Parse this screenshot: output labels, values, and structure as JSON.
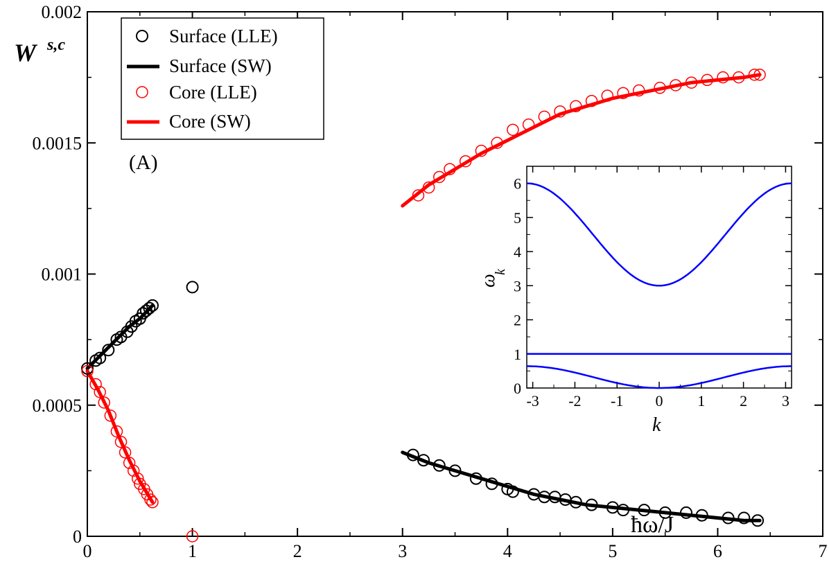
{
  "chart_data": [
    {
      "id": "main",
      "type": "scatter",
      "panel_label": "(A)",
      "ylabel": "W",
      "ylabel_superscript": "s,c",
      "xlabel": "ħω/J",
      "xlim": [
        0,
        7
      ],
      "ylim": [
        0,
        0.002
      ],
      "x_ticks": [
        "0",
        "1",
        "2",
        "3",
        "4",
        "5",
        "6",
        "7"
      ],
      "y_ticks": [
        "0",
        "0.0005",
        "0.001",
        "0.0015",
        "0.002"
      ],
      "legend_position": "top-left",
      "colors": {
        "surface": "#000000",
        "core": "#ff0000"
      },
      "legend": [
        {
          "label": "Surface (LLE)",
          "kind": "marker",
          "color": "#000000"
        },
        {
          "label": "Surface (SW)",
          "kind": "line",
          "color": "#000000"
        },
        {
          "label": "Core (LLE)",
          "kind": "marker",
          "color": "#ff0000"
        },
        {
          "label": "Core (SW)",
          "kind": "line",
          "color": "#ff0000"
        }
      ],
      "series": [
        {
          "name": "Surface (LLE)",
          "kind": "markers",
          "color": "#000000",
          "points": [
            [
              0.0,
              0.00064
            ],
            [
              0.08,
              0.00067
            ],
            [
              0.12,
              0.00068
            ],
            [
              0.2,
              0.00071
            ],
            [
              0.28,
              0.00075
            ],
            [
              0.32,
              0.00076
            ],
            [
              0.38,
              0.00078
            ],
            [
              0.42,
              0.0008
            ],
            [
              0.46,
              0.00082
            ],
            [
              0.5,
              0.00083
            ],
            [
              0.53,
              0.00085
            ],
            [
              0.56,
              0.00086
            ],
            [
              0.59,
              0.00087
            ],
            [
              0.62,
              0.00088
            ],
            [
              1.0,
              0.00095
            ],
            [
              3.1,
              0.00031
            ],
            [
              3.2,
              0.00029
            ],
            [
              3.35,
              0.00027
            ],
            [
              3.5,
              0.00025
            ],
            [
              3.7,
              0.00022
            ],
            [
              3.85,
              0.0002
            ],
            [
              4.0,
              0.00018
            ],
            [
              4.05,
              0.00017
            ],
            [
              4.25,
              0.00016
            ],
            [
              4.35,
              0.00015
            ],
            [
              4.45,
              0.00015
            ],
            [
              4.55,
              0.00014
            ],
            [
              4.65,
              0.00013
            ],
            [
              4.8,
              0.00012
            ],
            [
              5.0,
              0.00011
            ],
            [
              5.1,
              0.0001
            ],
            [
              5.3,
              0.0001
            ],
            [
              5.5,
              9e-05
            ],
            [
              5.7,
              9e-05
            ],
            [
              5.85,
              8e-05
            ],
            [
              6.1,
              7e-05
            ],
            [
              6.25,
              7e-05
            ],
            [
              6.38,
              6e-05
            ]
          ]
        },
        {
          "name": "Surface (SW)",
          "kind": "line",
          "color": "#000000",
          "x": [
            0.0,
            0.1,
            0.2,
            0.3,
            0.4,
            0.5,
            0.62
          ],
          "y": [
            0.00064,
            0.00068,
            0.00072,
            0.00076,
            0.0008,
            0.00083,
            0.00088
          ]
        },
        {
          "name": "Surface (SW) high band",
          "kind": "line",
          "color": "#000000",
          "x": [
            3.0,
            3.25,
            3.5,
            3.75,
            4.0,
            4.25,
            4.5,
            4.75,
            5.0,
            5.25,
            5.5,
            5.75,
            6.0,
            6.25,
            6.4
          ],
          "y": [
            0.00032,
            0.00028,
            0.00025,
            0.00022,
            0.00019,
            0.00016,
            0.00014,
            0.00012,
            0.00011,
            0.0001,
            9e-05,
            8e-05,
            7e-05,
            6e-05,
            6e-05
          ]
        },
        {
          "name": "Core (LLE)",
          "kind": "markers",
          "color": "#ff0000",
          "points": [
            [
              0.0,
              0.00063
            ],
            [
              0.08,
              0.00058
            ],
            [
              0.12,
              0.00055
            ],
            [
              0.16,
              0.00051
            ],
            [
              0.22,
              0.00046
            ],
            [
              0.28,
              0.0004
            ],
            [
              0.32,
              0.00036
            ],
            [
              0.36,
              0.00032
            ],
            [
              0.4,
              0.00028
            ],
            [
              0.44,
              0.00025
            ],
            [
              0.48,
              0.00022
            ],
            [
              0.5,
              0.0002
            ],
            [
              0.54,
              0.00018
            ],
            [
              0.57,
              0.00016
            ],
            [
              0.6,
              0.00014
            ],
            [
              0.62,
              0.00013
            ],
            [
              1.0,
              0.0
            ],
            [
              3.15,
              0.0013
            ],
            [
              3.25,
              0.00133
            ],
            [
              3.35,
              0.00137
            ],
            [
              3.45,
              0.0014
            ],
            [
              3.6,
              0.00143
            ],
            [
              3.75,
              0.00147
            ],
            [
              3.9,
              0.0015
            ],
            [
              4.05,
              0.00155
            ],
            [
              4.2,
              0.00157
            ],
            [
              4.35,
              0.0016
            ],
            [
              4.5,
              0.00162
            ],
            [
              4.65,
              0.00164
            ],
            [
              4.8,
              0.00166
            ],
            [
              4.95,
              0.00168
            ],
            [
              5.1,
              0.00169
            ],
            [
              5.25,
              0.0017
            ],
            [
              5.45,
              0.00171
            ],
            [
              5.6,
              0.00172
            ],
            [
              5.75,
              0.00173
            ],
            [
              5.9,
              0.00174
            ],
            [
              6.05,
              0.00175
            ],
            [
              6.2,
              0.00175
            ],
            [
              6.35,
              0.00176
            ],
            [
              6.4,
              0.00176
            ]
          ]
        },
        {
          "name": "Core (SW)",
          "kind": "line",
          "color": "#ff0000",
          "x": [
            0.0,
            0.1,
            0.2,
            0.3,
            0.4,
            0.5,
            0.62
          ],
          "y": [
            0.00063,
            0.00056,
            0.00048,
            0.00038,
            0.00029,
            0.00021,
            0.00013
          ]
        },
        {
          "name": "Core (SW) high band",
          "kind": "line",
          "color": "#ff0000",
          "x": [
            3.0,
            3.25,
            3.5,
            3.75,
            4.0,
            4.25,
            4.5,
            4.75,
            5.0,
            5.25,
            5.5,
            5.75,
            6.0,
            6.25,
            6.4
          ],
          "y": [
            0.00126,
            0.00134,
            0.0014,
            0.00146,
            0.00151,
            0.00156,
            0.00161,
            0.00164,
            0.00167,
            0.00169,
            0.00171,
            0.00173,
            0.00174,
            0.00175,
            0.00176
          ]
        }
      ]
    },
    {
      "id": "inset",
      "type": "line",
      "xlabel": "k",
      "ylabel": "ω",
      "ylabel_subscript": "k",
      "xlim": [
        -3.14159,
        3.14159
      ],
      "ylim": [
        0,
        6.5
      ],
      "x_ticks": [
        "-3",
        "-2",
        "-1",
        "0",
        "1",
        "2",
        "3"
      ],
      "y_ticks": [
        "0",
        "1",
        "2",
        "3",
        "4",
        "5",
        "6"
      ],
      "colors": {
        "curve": "#0000ff",
        "flat": "#0000ff"
      },
      "series": [
        {
          "name": "upper band",
          "formula": "4.5 - 1.5*cos(k)",
          "range": [
            -3.14159,
            3.14159
          ],
          "color": "#0000ff"
        },
        {
          "name": "flat band",
          "formula": "1",
          "range": [
            -3.14159,
            3.14159
          ],
          "color": "#0000ff"
        },
        {
          "name": "lower band",
          "formula": "0.32 - 0.32*cos(k)",
          "range": [
            -3.14159,
            3.14159
          ],
          "color": "#0000ff"
        }
      ]
    }
  ]
}
